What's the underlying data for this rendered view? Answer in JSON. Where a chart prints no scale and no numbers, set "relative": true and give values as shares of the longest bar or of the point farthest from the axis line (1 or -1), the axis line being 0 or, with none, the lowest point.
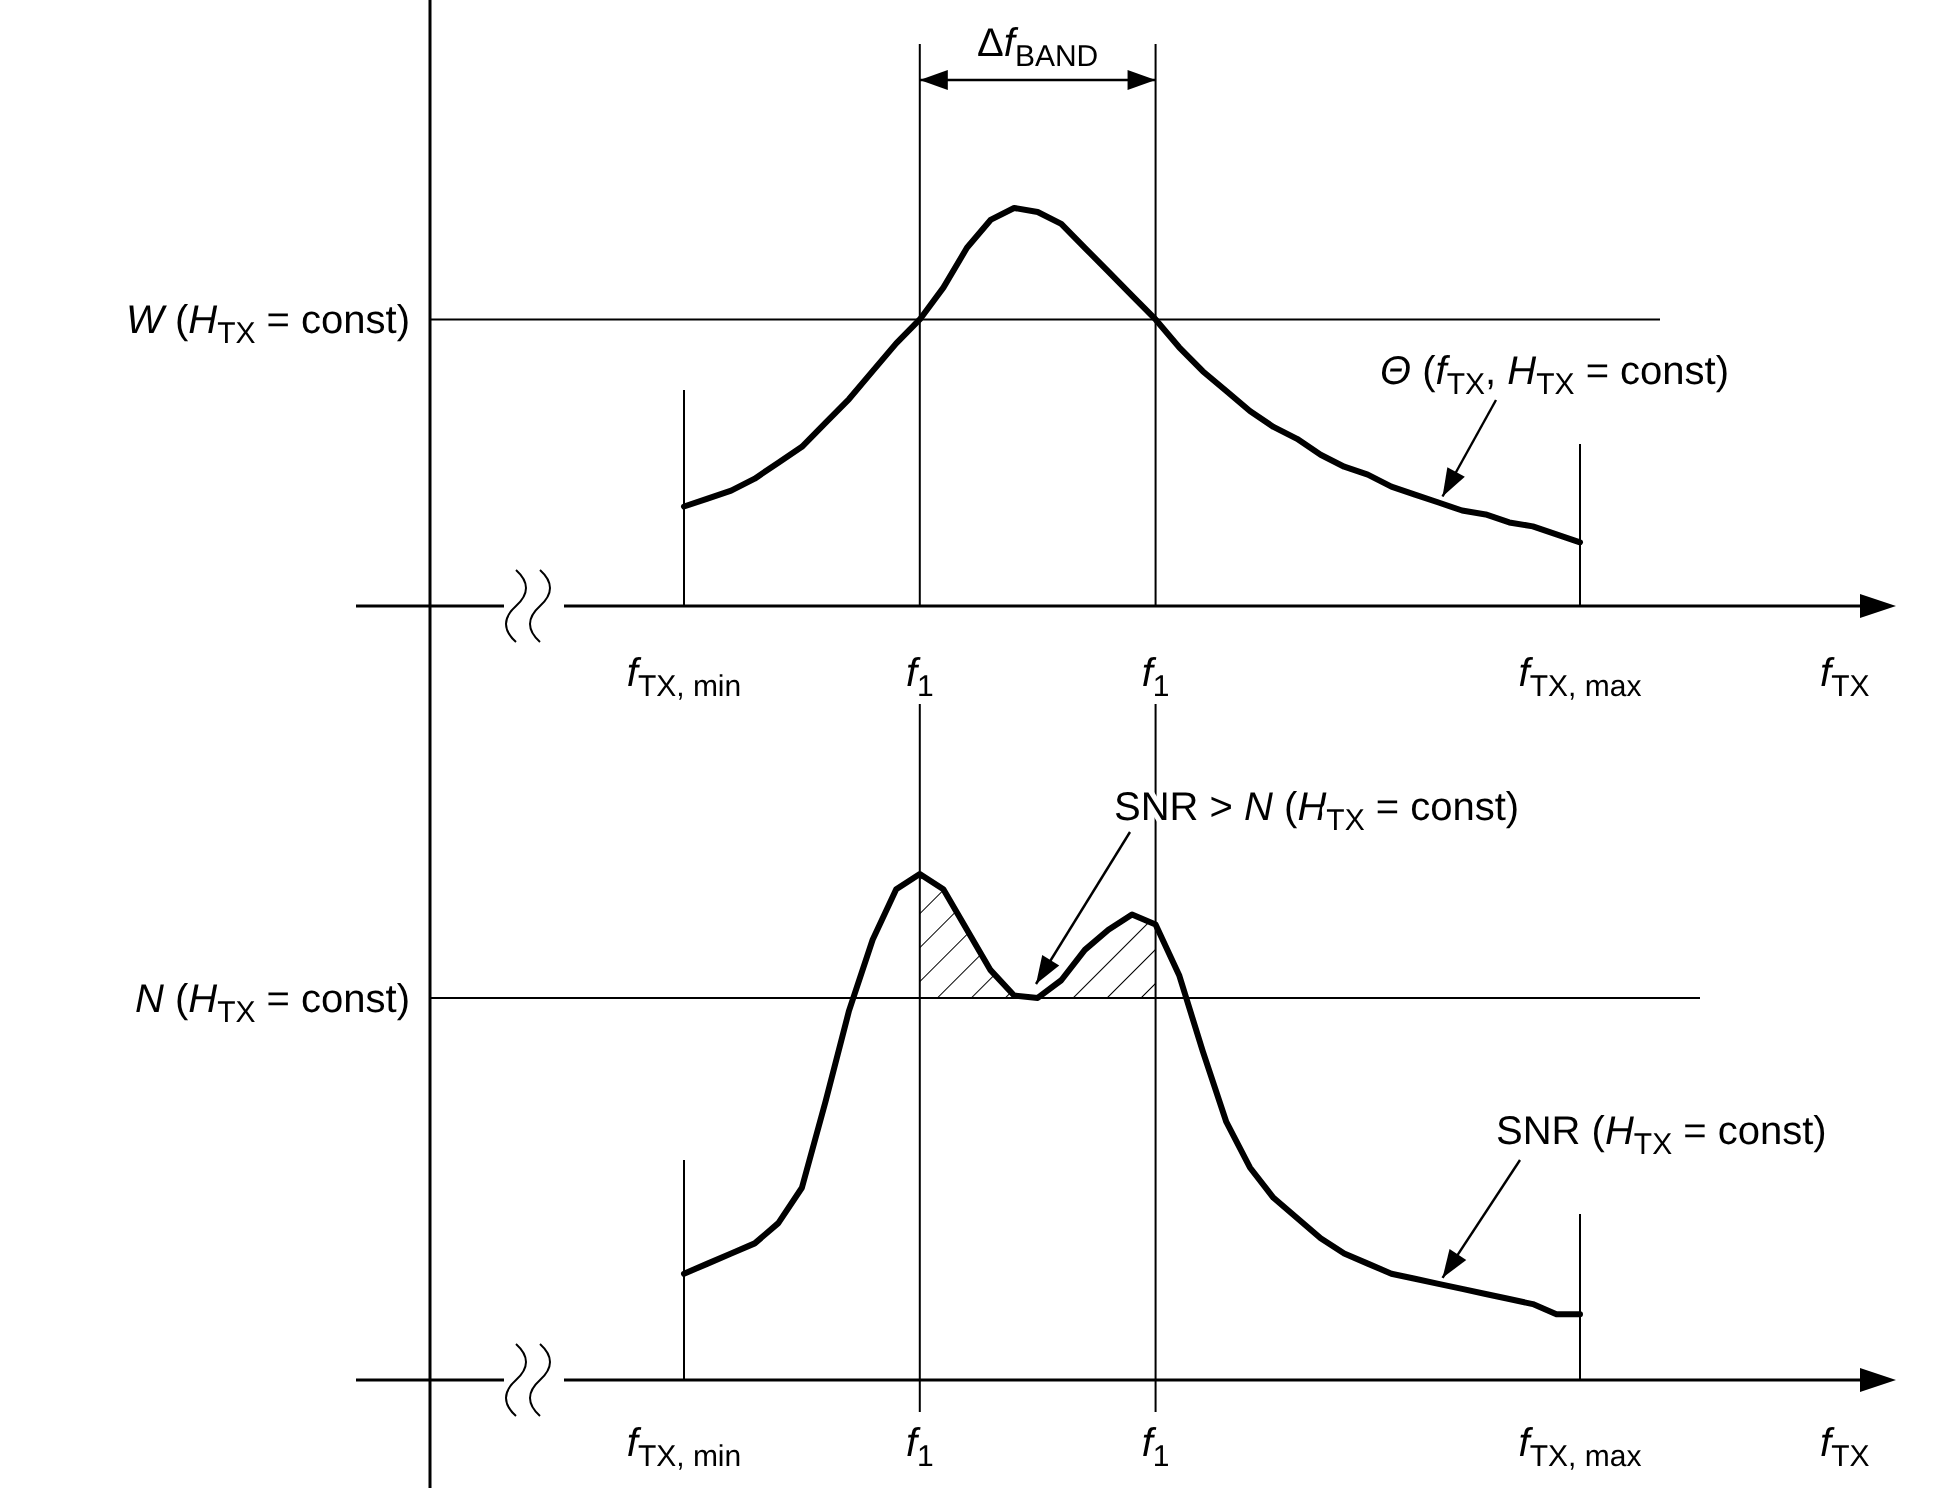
{
  "chart_data": [
    {
      "type": "line",
      "relative": true,
      "xlabel": "f$_{TX}$",
      "line_style": "solid",
      "categories": [
        "f$_{TX, min}$",
        null,
        null,
        null,
        null,
        null,
        null,
        null,
        null,
        null,
        "f$_{1}$",
        null,
        null,
        null,
        null,
        null,
        null,
        null,
        null,
        null,
        "f$_{1}$",
        null,
        null,
        null,
        null,
        null,
        null,
        null,
        null,
        null,
        null,
        null,
        null,
        null,
        null,
        null,
        null,
        null,
        "f$_{TX, max}$"
      ],
      "series": [
        {
          "color": "#000000",
          "values": [
            0.25,
            0.27,
            0.29,
            0.32,
            0.36,
            0.4,
            0.46,
            0.52,
            0.59,
            0.66,
            0.72,
            0.8,
            0.9,
            0.97,
            1,
            0.99,
            0.96,
            0.9,
            0.84,
            0.78,
            0.72,
            0.65,
            0.59,
            0.54,
            0.49,
            0.45,
            0.42,
            0.38,
            0.35,
            0.33,
            0.3,
            0.28,
            0.26,
            0.24,
            0.23,
            0.21,
            0.2,
            0.18,
            0.16
          ]
        }
      ],
      "ref_lines": [
        {
          "axis": "y",
          "value": 0.72,
          "label": "W (H$_{TX}$ = const)",
          "color": "#000000"
        }
      ],
      "annotations": [
        "Δf$_{BAND}$",
        "Θ (f$_{TX}$, H$_{TX}$ = const)"
      ]
    },
    {
      "type": "line",
      "relative": true,
      "xlabel": "f$_{TX}$",
      "line_style": "solid",
      "categories": [
        "f$_{TX, min}$",
        null,
        null,
        null,
        null,
        null,
        null,
        null,
        null,
        null,
        "f$_{1}$",
        null,
        null,
        null,
        null,
        null,
        null,
        null,
        null,
        null,
        "f$_{1}$",
        null,
        null,
        null,
        null,
        null,
        null,
        null,
        null,
        null,
        null,
        null,
        null,
        null,
        null,
        null,
        null,
        null,
        "f$_{TX, max}$"
      ],
      "series": [
        {
          "color": "#000000",
          "values": [
            0.21,
            0.23,
            0.25,
            0.27,
            0.31,
            0.38,
            0.55,
            0.73,
            0.87,
            0.97,
            1,
            0.97,
            0.89,
            0.81,
            0.76,
            0.755,
            0.79,
            0.85,
            0.89,
            0.92,
            0.9,
            0.8,
            0.65,
            0.51,
            0.42,
            0.36,
            0.32,
            0.28,
            0.25,
            0.23,
            0.21,
            0.2,
            0.19,
            0.18,
            0.17,
            0.16,
            0.15,
            0.13,
            0.13
          ],
          "lower": [
            null,
            null,
            null,
            null,
            null,
            null,
            null,
            null,
            null,
            null,
            0.755,
            0.755,
            0.755,
            0.755,
            0.755,
            0.755,
            0.755,
            0.755,
            0.755,
            0.755,
            0.755,
            null,
            null,
            null,
            null,
            null,
            null,
            null,
            null,
            null,
            null,
            null,
            null,
            null,
            null,
            null,
            null,
            null,
            null
          ],
          "upper": [
            null,
            null,
            null,
            null,
            null,
            null,
            null,
            null,
            null,
            null,
            1,
            0.97,
            0.89,
            0.81,
            0.76,
            0.755,
            0.79,
            0.85,
            0.89,
            0.92,
            0.9,
            null,
            null,
            null,
            null,
            null,
            null,
            null,
            null,
            null,
            null,
            null,
            null,
            null,
            null,
            null,
            null,
            null,
            null
          ]
        }
      ],
      "ref_lines": [
        {
          "axis": "y",
          "value": 0.755,
          "label": "N (H$_{TX}$ = const)",
          "color": "#000000"
        }
      ],
      "annotations": [
        "SNR > N (H$_{TX}$ = const)",
        "SNR (H$_{TX}$ = const)"
      ]
    }
  ]
}
